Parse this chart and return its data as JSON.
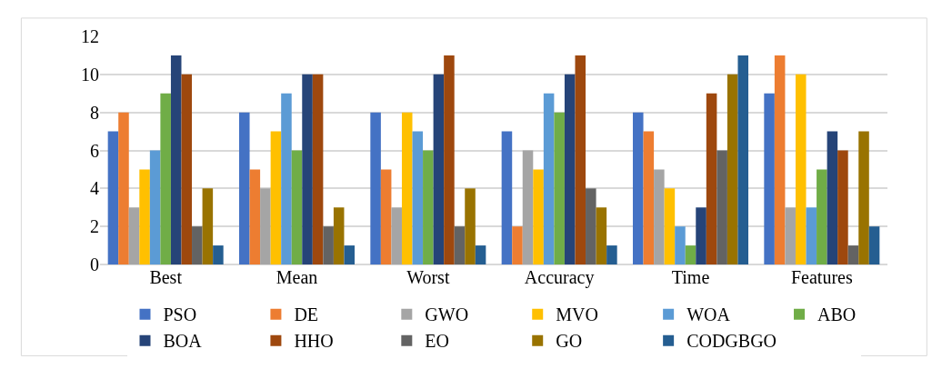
{
  "chart_data": {
    "type": "bar",
    "categories": [
      "Best",
      "Mean",
      "Worst",
      "Accuracy",
      "Time",
      "Features"
    ],
    "series": [
      {
        "name": "PSO",
        "color": "#4472c4",
        "values": [
          7,
          8,
          8,
          7,
          8,
          9
        ]
      },
      {
        "name": "DE",
        "color": "#ed7d31",
        "values": [
          8,
          5,
          5,
          2,
          7,
          11
        ]
      },
      {
        "name": "GWO",
        "color": "#a5a5a5",
        "values": [
          3,
          4,
          3,
          6,
          5,
          3
        ]
      },
      {
        "name": "MVO",
        "color": "#ffc000",
        "values": [
          5,
          7,
          8,
          5,
          4,
          10
        ]
      },
      {
        "name": "WOA",
        "color": "#5b9bd5",
        "values": [
          6,
          9,
          7,
          9,
          2,
          3
        ]
      },
      {
        "name": "ABO",
        "color": "#70ad47",
        "values": [
          9,
          6,
          6,
          8,
          1,
          5
        ]
      },
      {
        "name": "BOA",
        "color": "#264478",
        "values": [
          11,
          10,
          10,
          10,
          3,
          7
        ]
      },
      {
        "name": "HHO",
        "color": "#9e480e",
        "values": [
          10,
          10,
          11,
          11,
          9,
          6
        ]
      },
      {
        "name": "EO",
        "color": "#636363",
        "values": [
          2,
          2,
          2,
          4,
          6,
          1
        ]
      },
      {
        "name": "GO",
        "color": "#997300",
        "values": [
          4,
          3,
          4,
          3,
          10,
          7
        ]
      },
      {
        "name": "CODGBGO",
        "color": "#255e91",
        "values": [
          1,
          1,
          1,
          1,
          11,
          2
        ]
      }
    ],
    "ylim": [
      0,
      12
    ],
    "yticks": [
      0,
      2,
      4,
      6,
      8,
      10,
      12
    ],
    "grid": "y",
    "legend": "bottom"
  }
}
